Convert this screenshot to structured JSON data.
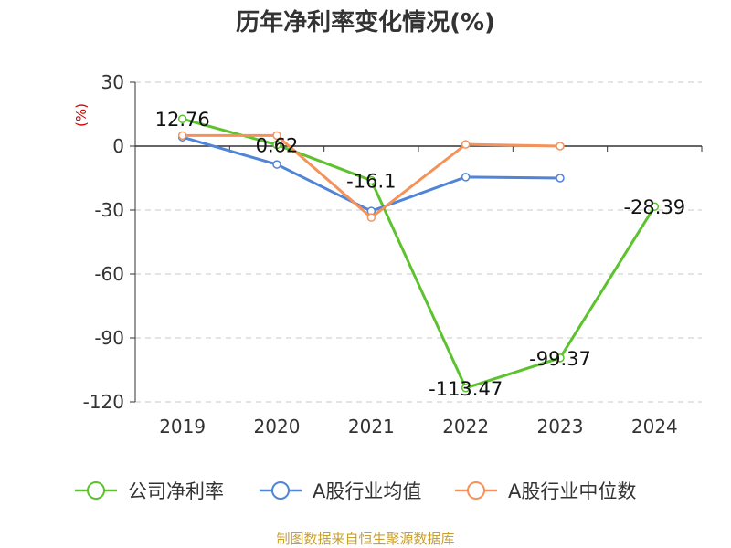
{
  "chart_data": {
    "type": "line",
    "title": "历年净利率变化情况(%)",
    "ylabel": "(%)",
    "xlabel": "",
    "categories": [
      "2019",
      "2020",
      "2021",
      "2022",
      "2023",
      "2024"
    ],
    "ylim": [
      -120,
      30
    ],
    "yticks": [
      30,
      0,
      -30,
      -60,
      -90,
      -120
    ],
    "grid": true,
    "legend_position": "bottom",
    "series": [
      {
        "name": "公司净利率",
        "color": "#5cc22d",
        "values": [
          12.76,
          0.62,
          -16.1,
          -113.47,
          -99.37,
          -28.39
        ],
        "labels": [
          "12.76",
          "0.62",
          "-16.1",
          "-113.47",
          "-99.37",
          "-28.39"
        ]
      },
      {
        "name": "A股行业均值",
        "color": "#4f84d6",
        "values": [
          4.2,
          -8.6,
          -30.5,
          -14.5,
          -15.0,
          null
        ]
      },
      {
        "name": "A股行业中位数",
        "color": "#f4925a",
        "values": [
          5.0,
          5.0,
          -33.5,
          0.8,
          0.0,
          null
        ]
      }
    ]
  },
  "footer": {
    "source": "制图数据来自恒生聚源数据库"
  }
}
